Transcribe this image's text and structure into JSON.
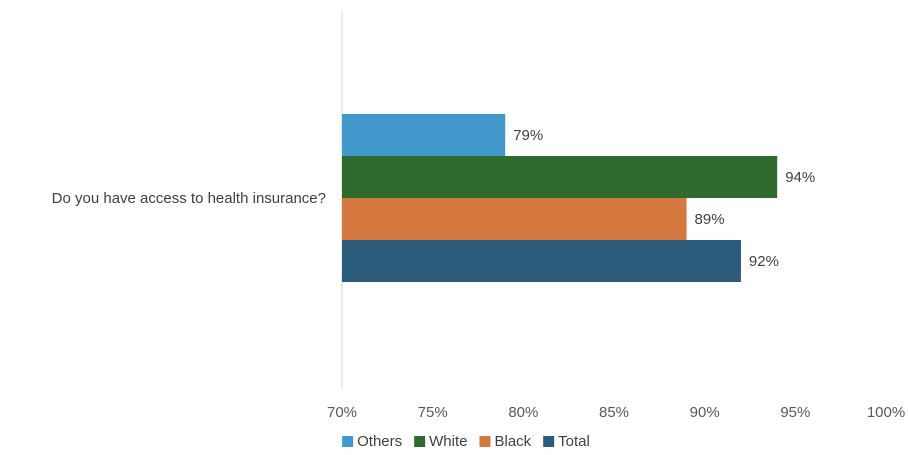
{
  "chart_data": {
    "type": "bar",
    "orientation": "horizontal",
    "categories": [
      "Do you have access to health insurance?"
    ],
    "series": [
      {
        "name": "Others",
        "values": [
          0.79
        ],
        "label": "79%",
        "color": "#4499CC"
      },
      {
        "name": "White",
        "values": [
          0.94
        ],
        "label": "94%",
        "color": "#2F6A2E"
      },
      {
        "name": "Black",
        "values": [
          0.89
        ],
        "label": "89%",
        "color": "#D5783F"
      },
      {
        "name": "Total",
        "values": [
          0.92
        ],
        "label": "92%",
        "color": "#2B5C7C"
      }
    ],
    "xlim": [
      0.7,
      1.0
    ],
    "xticks": [
      {
        "value": 0.7,
        "label": "70%"
      },
      {
        "value": 0.75,
        "label": "75%"
      },
      {
        "value": 0.8,
        "label": "80%"
      },
      {
        "value": 0.85,
        "label": "85%"
      },
      {
        "value": 0.9,
        "label": "90%"
      },
      {
        "value": 0.95,
        "label": "95%"
      },
      {
        "value": 1.0,
        "label": "100%"
      }
    ],
    "title": "",
    "xlabel": "",
    "ylabel": "",
    "grid": false,
    "legend": "bottom",
    "axis_color": "#D9D9D9"
  }
}
